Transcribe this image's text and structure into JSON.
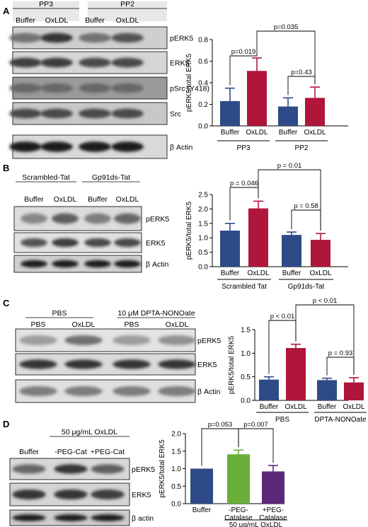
{
  "panels": [
    {
      "label": "A",
      "blot": {
        "group_headers": [
          "PP3",
          "PP2"
        ],
        "lane_labels": [
          "Buffer",
          "OxLDL",
          "Buffer",
          "OxLDL"
        ],
        "band_labels": [
          "pERK5",
          "ERK5",
          "pSrc (Y418)",
          "Src",
          "β Actin"
        ]
      }
    },
    {
      "label": "B",
      "blot": {
        "group_headers": [
          "Scrambled-Tat",
          "Gp91ds-Tat"
        ],
        "lane_labels": [
          "Buffer",
          "OxLDL",
          "Buffer",
          "OxLDL"
        ],
        "band_labels": [
          "pERK5",
          "ERK5",
          "β Actin"
        ]
      }
    },
    {
      "label": "C",
      "blot": {
        "group_headers": [
          "PBS",
          "10 μM DPTA-NONOate"
        ],
        "lane_labels": [
          "PBS",
          "OxLDL",
          "PBS",
          "OxLDL"
        ],
        "band_labels": [
          "pERK5",
          "ERK5",
          "β Actin"
        ]
      }
    },
    {
      "label": "D",
      "blot": {
        "group_headers": [
          "50 μg/mL OxLDL"
        ],
        "lane_labels": [
          "Buffer",
          "-PEG-Cat",
          "+PEG-Cat"
        ],
        "band_labels": [
          "pERK5",
          "ERK5",
          "β actin"
        ]
      }
    }
  ],
  "chart_data": [
    {
      "type": "bar",
      "panel": "A",
      "ylabel": "pERK5/total ERK5",
      "ylim": [
        0,
        0.8
      ],
      "yticks": [
        0.0,
        0.2,
        0.4,
        0.6,
        0.8
      ],
      "ytick_labels": [
        "0.0",
        "0.2",
        "0.4",
        "0.6",
        "0.8"
      ],
      "categories": [
        "Buffer",
        "OxLDL",
        "Buffer",
        "OxLDL"
      ],
      "values": [
        0.23,
        0.51,
        0.18,
        0.26
      ],
      "errors": [
        0.12,
        0.12,
        0.08,
        0.1
      ],
      "colors": [
        "#2e4a87",
        "#b0163a",
        "#2e4a87",
        "#b0163a"
      ],
      "groups": [
        {
          "label": "PP3",
          "bars": [
            0,
            1
          ]
        },
        {
          "label": "PP2",
          "bars": [
            2,
            3
          ]
        }
      ],
      "annotations": [
        {
          "text": "p=0.019",
          "from": 0,
          "to": 1
        },
        {
          "text": "p=0.035",
          "from": 1,
          "to": 3
        },
        {
          "text": "p=0.43",
          "from": 2,
          "to": 3
        }
      ]
    },
    {
      "type": "bar",
      "panel": "B",
      "ylabel": "pERK5/total ERK5",
      "ylim": [
        0,
        2.5
      ],
      "yticks": [
        0.0,
        0.5,
        1.0,
        1.5,
        2.0,
        2.5
      ],
      "ytick_labels": [
        "0.0",
        "0.5",
        "1.0",
        "1.5",
        "2.0",
        "2.5"
      ],
      "categories": [
        "Buffer",
        "OxLDL",
        "Buffer",
        "OxLDL"
      ],
      "values": [
        1.25,
        2.02,
        1.1,
        0.93
      ],
      "errors": [
        0.25,
        0.25,
        0.1,
        0.22
      ],
      "colors": [
        "#2e4a87",
        "#b0163a",
        "#2e4a87",
        "#b0163a"
      ],
      "groups": [
        {
          "label": "Scrambled Tat",
          "bars": [
            0,
            1
          ]
        },
        {
          "label": "Gp91ds-Tat",
          "bars": [
            2,
            3
          ]
        }
      ],
      "annotations": [
        {
          "text": "p = 0.046",
          "from": 0,
          "to": 1
        },
        {
          "text": "p = 0.01",
          "from": 1,
          "to": 3
        },
        {
          "text": "p = 0.58",
          "from": 2,
          "to": 3
        }
      ]
    },
    {
      "type": "bar",
      "panel": "C",
      "ylabel": "pERK5/total ERK5",
      "ylim": [
        0,
        1.5
      ],
      "yticks": [
        0.0,
        0.5,
        1.0,
        1.5
      ],
      "ytick_labels": [
        "0.0",
        "0.5",
        "1.0",
        "1.5"
      ],
      "categories": [
        "Buffer",
        "OxLDL",
        "Buffer",
        "OxLDL"
      ],
      "values": [
        0.44,
        1.11,
        0.43,
        0.38
      ],
      "errors": [
        0.06,
        0.08,
        0.04,
        0.1
      ],
      "colors": [
        "#2e4a87",
        "#b0163a",
        "#2e4a87",
        "#b0163a"
      ],
      "groups": [
        {
          "label": "PBS",
          "bars": [
            0,
            1
          ]
        },
        {
          "label": "DPTA-NONOate",
          "bars": [
            2,
            3
          ]
        }
      ],
      "annotations": [
        {
          "text": "p < 0.01",
          "from": 0,
          "to": 1
        },
        {
          "text": "p < 0.01",
          "from": 1,
          "to": 3
        },
        {
          "text": "p = 0.93",
          "from": 2,
          "to": 3
        }
      ]
    },
    {
      "type": "bar",
      "panel": "D",
      "ylabel": "pERK5/total ERK5",
      "ylim": [
        0,
        2.0
      ],
      "yticks": [
        0.0,
        0.5,
        1.0,
        1.5,
        2.0
      ],
      "ytick_labels": [
        "0.0",
        "0.5",
        "1.0",
        "1.5",
        "2.0"
      ],
      "categories": [
        "Buffer",
        "-PEG-\nCatalase",
        "+PEG-\nCatalase"
      ],
      "values": [
        1.0,
        1.41,
        0.92
      ],
      "errors": [
        0.0,
        0.12,
        0.17
      ],
      "colors": [
        "#2e4a87",
        "#6aaf3a",
        "#5b2878"
      ],
      "groups": [
        {
          "label": "50 μg/mL OxLDL",
          "bars": [
            1,
            2
          ]
        }
      ],
      "annotations": [
        {
          "text": "p=0.053",
          "from": 0,
          "to": 1
        },
        {
          "text": "p=0.007",
          "from": 1,
          "to": 2
        }
      ]
    }
  ]
}
